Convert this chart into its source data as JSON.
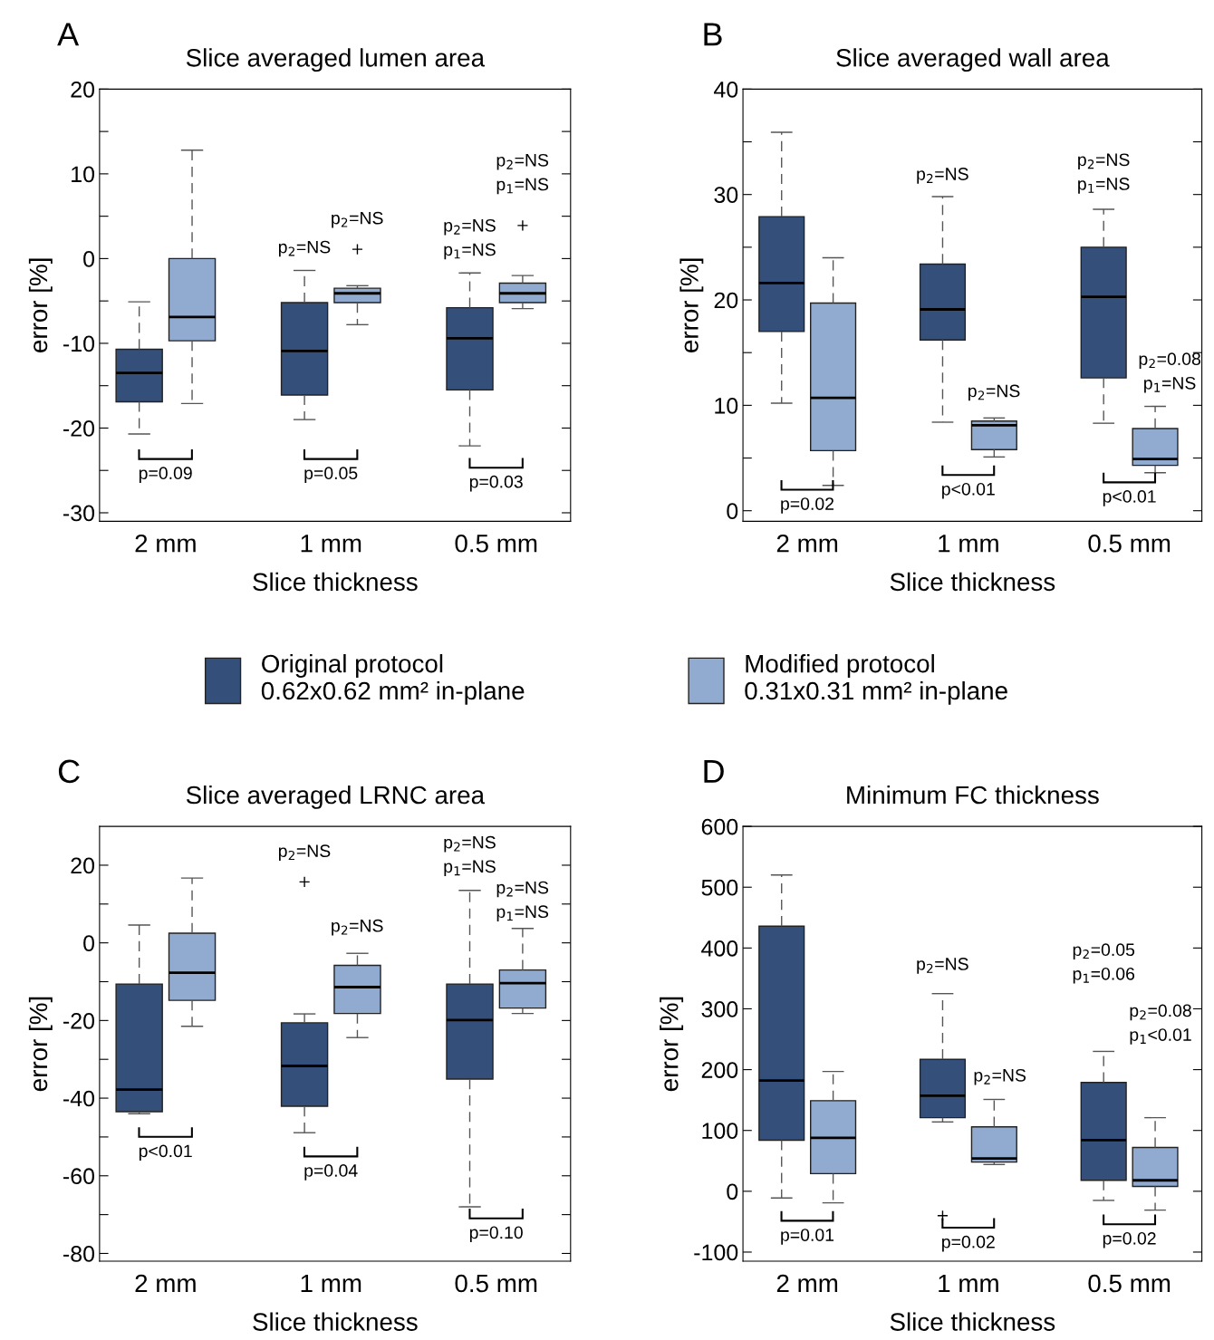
{
  "chart_data": [
    {
      "type": "box",
      "title": "Slice averaged lumen area",
      "xlabel": "Slice thickness",
      "ylabel": "error [%]",
      "categories": [
        "2 mm",
        "1 mm",
        "0.5 mm"
      ],
      "legend": "bottom",
      "ylim": [
        -31,
        20
      ],
      "yticks": [
        -30,
        {
          "value": -25,
          "label": null
        },
        -20,
        {
          "value": -15,
          "label": null
        },
        -10,
        {
          "value": -5,
          "label": null
        },
        0,
        {
          "value": 5,
          "label": null
        },
        10,
        {
          "value": 15,
          "label": null
        },
        20
      ],
      "series": [
        {
          "name": "Original protocol\n0.62x0.62 mm² in-plane",
          "color": "#34507a",
          "boxes": [
            {
              "low": -20.7,
              "q1": -16.9,
              "median": -13.5,
              "q3": -10.7,
              "high": -5.1
            },
            {
              "low": -19.0,
              "q1": -16.1,
              "median": -10.9,
              "q3": -5.2,
              "high": -1.4
            },
            {
              "low": -22.1,
              "q1": -15.5,
              "median": -9.4,
              "q3": -5.8,
              "high": -1.7
            }
          ]
        },
        {
          "name": "Modified protocol\n0.31x0.31 mm² in-plane",
          "color": "#91abd0",
          "boxes": [
            {
              "low": -17.1,
              "q1": -9.7,
              "median": -6.9,
              "q3": 0,
              "high": 12.8
            },
            {
              "low": -7.8,
              "q1": -5.2,
              "median": -4.1,
              "q3": -3.5,
              "high": -3.2,
              "outliers": [
                1.1
              ]
            },
            {
              "low": -5.9,
              "q1": -5.2,
              "median": -4.1,
              "q3": -2.9,
              "high": -2.0,
              "outliers": [
                3.9
              ]
            }
          ]
        }
      ],
      "annotations": [
        "A",
        "p=0.09",
        "p=0.05",
        "p=0.03",
        "p$_{2}$=NS",
        "p$_{2}$=NS",
        "p$_{2}$=NS\np$_{1}$=NS",
        "p$_{2}$=NS\np$_{1}$=NS"
      ]
    },
    {
      "type": "box",
      "title": "Slice averaged wall area",
      "xlabel": "Slice thickness",
      "ylabel": "error [%]",
      "categories": [
        "2 mm",
        "1 mm",
        "0.5 mm"
      ],
      "ylim": [
        -1,
        40
      ],
      "yticks": [
        0,
        {
          "value": 5,
          "label": null
        },
        10,
        {
          "value": 15,
          "label": null
        },
        20,
        {
          "value": 25,
          "label": null
        },
        30,
        {
          "value": 35,
          "label": null
        },
        40
      ],
      "series": [
        {
          "color": "#34507a",
          "boxes": [
            {
              "low": 10.2,
              "q1": 17.0,
              "median": 21.6,
              "q3": 27.9,
              "high": 35.9
            },
            {
              "low": 8.4,
              "q1": 16.2,
              "median": 19.1,
              "q3": 23.4,
              "high": 29.8
            },
            {
              "low": 8.3,
              "q1": 12.6,
              "median": 20.3,
              "q3": 25.0,
              "high": 28.6
            }
          ]
        },
        {
          "color": "#91abd0",
          "boxes": [
            {
              "low": 2.4,
              "q1": 5.7,
              "median": 10.7,
              "q3": 19.7,
              "high": 24.0
            },
            {
              "low": 5.1,
              "q1": 5.8,
              "median": 8.1,
              "q3": 8.5,
              "high": 8.8
            },
            {
              "low": 3.6,
              "q1": 4.3,
              "median": 4.9,
              "q3": 7.8,
              "high": 9.9
            }
          ]
        }
      ],
      "annotations": [
        "B",
        "p=0.02",
        "p<0.01",
        "p<0.01",
        "p$_{2}$=NS",
        "p$_{2}$=NS",
        "p$_{2}$=NS\np$_{1}$=NS",
        "p$_{2}$=0.08\np$_{1}$=NS"
      ]
    },
    {
      "type": "box",
      "title": "Slice averaged LRNC area",
      "xlabel": "Slice thickness",
      "ylabel": "error [%]",
      "categories": [
        "2 mm",
        "1 mm",
        "0.5 mm"
      ],
      "ylim": [
        -82,
        30
      ],
      "yticks": [
        -80,
        {
          "value": -70,
          "label": null
        },
        -60,
        {
          "value": -50,
          "label": null
        },
        -40,
        {
          "value": -30,
          "label": null
        },
        -20,
        {
          "value": -10,
          "label": null
        },
        0,
        {
          "value": 10,
          "label": null
        },
        20
      ],
      "series": [
        {
          "color": "#34507a",
          "boxes": [
            {
              "low": -44.0,
              "q1": -43.5,
              "median": -37.8,
              "q3": -10.6,
              "high": 4.6
            },
            {
              "low": -48.9,
              "q1": -42.1,
              "median": -31.7,
              "q3": -20.6,
              "high": -18.3,
              "outliers": [
                15.7
              ]
            },
            {
              "low": -68.0,
              "q1": -35.1,
              "median": -19.9,
              "q3": -10.6,
              "high": 13.5
            }
          ]
        },
        {
          "color": "#91abd0",
          "boxes": [
            {
              "low": -21.5,
              "q1": -14.8,
              "median": -7.7,
              "q3": 2.5,
              "high": 16.7
            },
            {
              "low": -24.4,
              "q1": -18.2,
              "median": -11.4,
              "q3": -5.8,
              "high": -2.7
            },
            {
              "low": -18.2,
              "q1": -16.8,
              "median": -10.4,
              "q3": -7.0,
              "high": 3.7
            }
          ]
        }
      ],
      "annotations": [
        "C",
        "p<0.01",
        "p=0.04",
        "p=0.10",
        "p$_{2}$=NS",
        "p$_{2}$=NS",
        "p$_{2}$=NS\np$_{1}$=NS",
        "p$_{2}$=NS\np$_{1}$=NS"
      ]
    },
    {
      "type": "box",
      "title": "Minimum FC thickness",
      "xlabel": "Slice thickness",
      "ylabel": "error [%]",
      "categories": [
        "2 mm",
        "1 mm",
        "0.5 mm"
      ],
      "ylim": [
        -115,
        600
      ],
      "yticks": [
        -100,
        0,
        100,
        200,
        300,
        400,
        500,
        600
      ],
      "series": [
        {
          "color": "#34507a",
          "boxes": [
            {
              "low": -11,
              "q1": 84,
              "median": 182,
              "q3": 436,
              "high": 520
            },
            {
              "low": 114,
              "q1": 121,
              "median": 157,
              "q3": 217,
              "high": 325,
              "outliers": [
                -40
              ]
            },
            {
              "low": -15,
              "q1": 18,
              "median": 84,
              "q3": 179,
              "high": 230
            }
          ]
        },
        {
          "color": "#91abd0",
          "boxes": [
            {
              "low": -19,
              "q1": 29,
              "median": 88,
              "q3": 149,
              "high": 197
            },
            {
              "low": 44,
              "q1": 48,
              "median": 54,
              "q3": 106,
              "high": 151
            },
            {
              "low": -31,
              "q1": 8,
              "median": 18,
              "q3": 72,
              "high": 121
            }
          ]
        }
      ],
      "annotations": [
        "D",
        "p=0.01",
        "p=0.02",
        "p=0.02",
        "p$_{2}$=NS",
        "p$_{2}$=NS",
        "p$_{2}$=0.05\np$_{1}$=0.06",
        "p$_{2}$=0.08\np$_{1}$<0.01"
      ]
    }
  ]
}
